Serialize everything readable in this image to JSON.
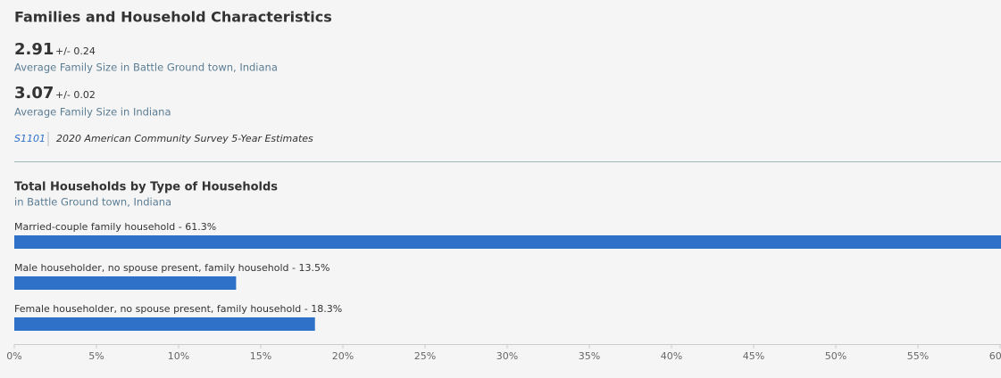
{
  "header": {
    "title": "Families and Household Characteristics"
  },
  "stats": [
    {
      "value": "2.91",
      "moe": "+/- 0.24",
      "label": "Average Family Size in Battle Ground town, Indiana"
    },
    {
      "value": "3.07",
      "moe": "+/- 0.02",
      "label": "Average Family Size in Indiana"
    }
  ],
  "source": {
    "table": "S1101",
    "survey": "2020 American Community Survey 5-Year Estimates"
  },
  "chart_data": {
    "type": "hbar",
    "title": "Total Households by Type of Households",
    "subtitle": "in Battle Ground town, Indiana",
    "categories": [
      "Married-couple family household - 61.3%",
      "Male householder, no spouse present, family household - 13.5%",
      "Female householder, no spouse present, family household - 18.3%"
    ],
    "values": [
      61.3,
      13.5,
      18.3
    ],
    "color": "#2f71c9",
    "xlim": [
      0,
      60
    ],
    "xticks": [
      {
        "value": 0,
        "label": "0%"
      },
      {
        "value": 5,
        "label": "5%"
      },
      {
        "value": 10,
        "label": "10%"
      },
      {
        "value": 15,
        "label": "15%"
      },
      {
        "value": 20,
        "label": "20%"
      },
      {
        "value": 25,
        "label": "25%"
      },
      {
        "value": 30,
        "label": "30%"
      },
      {
        "value": 35,
        "label": "35%"
      },
      {
        "value": 40,
        "label": "40%"
      },
      {
        "value": 45,
        "label": "45%"
      },
      {
        "value": 50,
        "label": "50%"
      },
      {
        "value": 55,
        "label": "55%"
      },
      {
        "value": 60,
        "label": "60%"
      }
    ]
  }
}
